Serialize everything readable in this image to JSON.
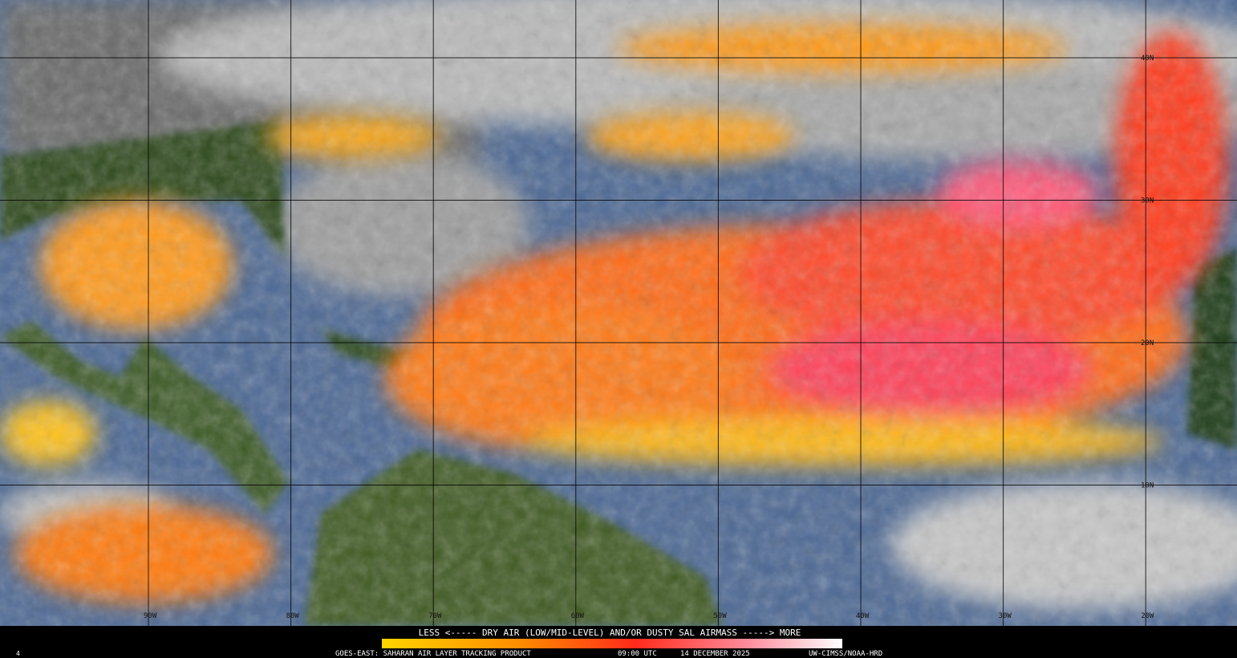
{
  "map": {
    "lat_labels": [
      "40N",
      "30N",
      "20N",
      "10N"
    ],
    "lon_labels": [
      "90W",
      "80W",
      "70W",
      "60W",
      "50W",
      "40W",
      "30W",
      "20W"
    ]
  },
  "legend": {
    "caption": "LESS <----- DRY AIR (LOW/MID-LEVEL) AND/OR DUSTY SAL AIRMASS -----> MORE"
  },
  "footer": {
    "frame": "4",
    "product": "GOES-EAST: SAHARAN AIR LAYER TRACKING PRODUCT",
    "time": "09:00 UTC",
    "date": "14 DECEMBER 2025",
    "credit": "UW-CIMSS/NOAA-HRD"
  }
}
